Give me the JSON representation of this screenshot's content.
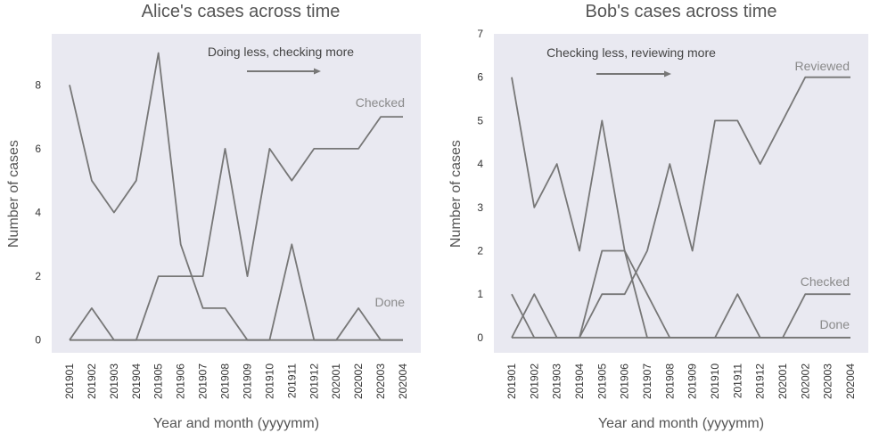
{
  "colors": {
    "background": "#e9e9f1",
    "line": "#777777",
    "text": "#555555",
    "series_label": "#8a8a8a"
  },
  "chart_data": [
    {
      "type": "line",
      "title": "Alice's cases across time",
      "xlabel": "Year and month (yyyymm)",
      "ylabel": "Number of cases",
      "categories": [
        "201901",
        "201902",
        "201903",
        "201904",
        "201905",
        "201906",
        "201907",
        "201908",
        "201909",
        "201910",
        "201911",
        "201912",
        "202001",
        "202002",
        "202003",
        "202004"
      ],
      "ylim": [
        -0.4,
        9.6
      ],
      "yticks": [
        0,
        2,
        4,
        6,
        8
      ],
      "grid": false,
      "annotation": "Doing less, checking more",
      "series": [
        {
          "name": "Checked",
          "values": [
            8,
            5,
            4,
            5,
            9,
            3,
            1,
            1,
            0,
            0,
            0,
            0,
            0,
            0,
            0,
            0
          ]
        },
        {
          "name": "",
          "values": [
            0,
            0,
            0,
            0,
            2,
            2,
            2,
            6,
            2,
            6,
            5,
            6,
            6,
            6,
            7,
            7
          ]
        },
        {
          "name": "Done",
          "values": [
            0,
            1,
            0,
            0,
            0,
            0,
            0,
            0,
            0,
            0,
            3,
            0,
            0,
            1,
            0,
            0
          ]
        }
      ]
    },
    {
      "type": "line",
      "title": "Bob's cases across time",
      "xlabel": "Year and month (yyyymm)",
      "ylabel": "Number of cases",
      "categories": [
        "201901",
        "201902",
        "201903",
        "201904",
        "201905",
        "201906",
        "201907",
        "201908",
        "201909",
        "201910",
        "201911",
        "201912",
        "202001",
        "202002",
        "202003",
        "202004"
      ],
      "ylim": [
        -0.35,
        7.0
      ],
      "yticks": [
        0,
        1,
        2,
        3,
        4,
        5,
        6,
        7
      ],
      "grid": false,
      "annotation": "Checking less, reviewing more",
      "series": [
        {
          "name": "Reviewed",
          "values": [
            6,
            3,
            4,
            2,
            5,
            2,
            1,
            0,
            0,
            0,
            0,
            0,
            0,
            0,
            0,
            0
          ]
        },
        {
          "name": "",
          "values": [
            0,
            0,
            0,
            0,
            1,
            1,
            2,
            4,
            2,
            5,
            5,
            4,
            5,
            6,
            6,
            6
          ]
        },
        {
          "name": "Checked",
          "values": [
            1,
            0,
            0,
            0,
            2,
            2,
            0,
            0,
            0,
            0,
            1,
            0,
            0,
            1,
            1,
            1
          ]
        },
        {
          "name": "Done",
          "values": [
            0,
            1,
            0,
            0,
            0,
            0,
            0,
            0,
            0,
            0,
            0,
            0,
            0,
            0,
            0,
            0
          ]
        }
      ]
    }
  ]
}
